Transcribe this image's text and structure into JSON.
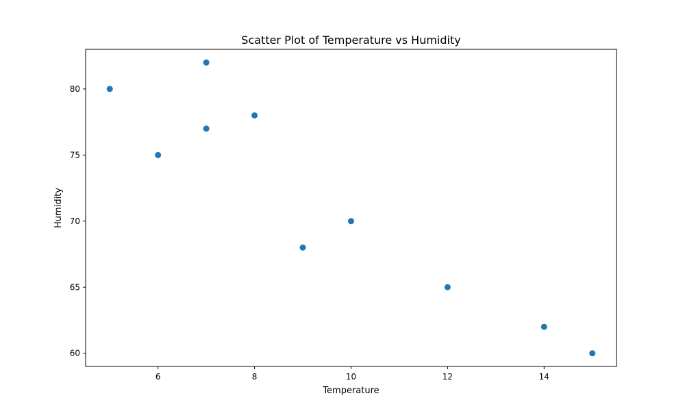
{
  "chart_data": {
    "type": "scatter",
    "title": "Scatter Plot of Temperature vs Humidity",
    "xlabel": "Temperature",
    "ylabel": "Humidity",
    "x": [
      5,
      6,
      7,
      7,
      8,
      9,
      10,
      12,
      14,
      15
    ],
    "y": [
      80,
      75,
      82,
      77,
      78,
      68,
      70,
      65,
      62,
      60
    ],
    "xlim": [
      4.5,
      15.5
    ],
    "ylim": [
      59,
      83
    ],
    "xticks": [
      6,
      8,
      10,
      12,
      14
    ],
    "yticks": [
      60,
      65,
      70,
      75,
      80
    ],
    "grid": false,
    "legend": false,
    "marker_color": "#1f77b4"
  }
}
